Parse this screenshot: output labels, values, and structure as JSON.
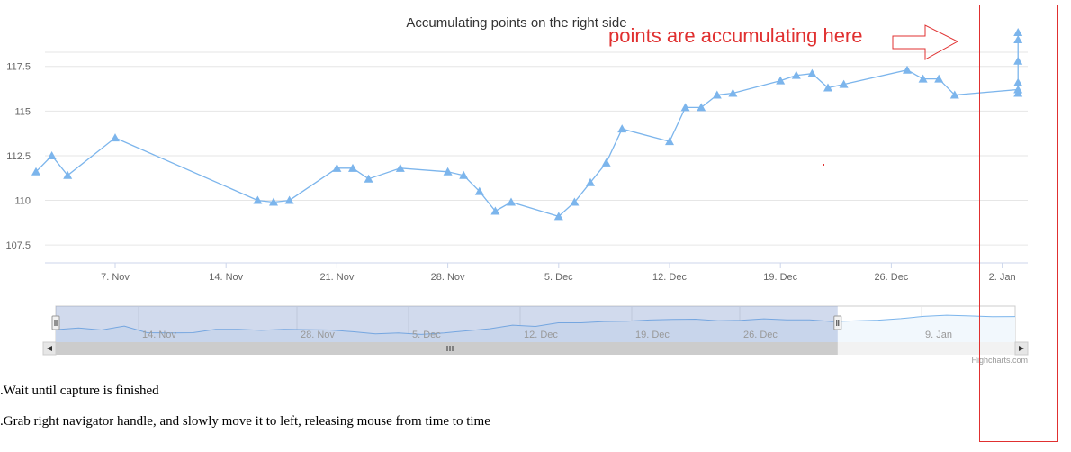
{
  "chart_data": {
    "type": "line",
    "title": "Accumulating points on the right side",
    "xlabel": "",
    "ylabel": "",
    "ylim": [
      106.5,
      119.2
    ],
    "yticks": [
      107.5,
      110,
      112.5,
      115,
      117.5
    ],
    "ytick_labels": [
      "107.5",
      "110",
      "112.5",
      "115",
      "117.5"
    ],
    "xticks": [
      {
        "label": "7. Nov",
        "date": "2016-11-07"
      },
      {
        "label": "14. Nov",
        "date": "2016-11-14"
      },
      {
        "label": "21. Nov",
        "date": "2016-11-21"
      },
      {
        "label": "28. Nov",
        "date": "2016-11-28"
      },
      {
        "label": "5. Dec",
        "date": "2016-12-05"
      },
      {
        "label": "12. Dec",
        "date": "2016-12-12"
      },
      {
        "label": "19. Dec",
        "date": "2016-12-19"
      },
      {
        "label": "26. Dec",
        "date": "2016-12-26"
      },
      {
        "label": "2. Jan",
        "date": "2017-01-02"
      }
    ],
    "grid": true,
    "color": "#7cb5ec",
    "marker": "triangle",
    "series": [
      {
        "x": [
          "2016-11-02",
          "2016-11-03",
          "2016-11-04",
          "2016-11-07",
          "2016-11-16",
          "2016-11-17",
          "2016-11-18",
          "2016-11-21",
          "2016-11-22",
          "2016-11-23",
          "2016-11-25",
          "2016-11-28",
          "2016-11-29",
          "2016-11-30",
          "2016-12-01",
          "2016-12-02",
          "2016-12-05",
          "2016-12-06",
          "2016-12-07",
          "2016-12-08",
          "2016-12-09",
          "2016-12-12",
          "2016-12-13",
          "2016-12-14",
          "2016-12-15",
          "2016-12-16",
          "2016-12-19",
          "2016-12-20",
          "2016-12-21",
          "2016-12-22",
          "2016-12-23",
          "2016-12-27",
          "2016-12-28",
          "2016-12-29",
          "2016-12-30",
          "2017-01-03",
          "2017-01-03",
          "2017-01-03",
          "2017-01-03",
          "2017-01-03",
          "2017-01-03"
        ],
        "y": [
          111.6,
          112.5,
          111.4,
          113.5,
          110.0,
          109.9,
          110.0,
          111.8,
          111.8,
          111.2,
          111.8,
          111.6,
          111.4,
          110.5,
          109.4,
          109.9,
          109.1,
          109.9,
          111.0,
          112.1,
          114.0,
          113.3,
          115.2,
          115.2,
          115.9,
          116.0,
          116.7,
          117.0,
          117.1,
          116.3,
          116.5,
          117.3,
          116.8,
          116.8,
          115.9,
          116.2,
          116.0,
          116.6,
          117.8,
          119.0,
          119.4
        ]
      }
    ],
    "navigator": {
      "labels": [
        "14. Nov",
        "28. Nov",
        "5. Dec",
        "12. Dec",
        "19. Dec",
        "26. Dec",
        "9. Jan"
      ],
      "y": [
        111.6,
        112.5,
        111.4,
        113.5,
        110.0,
        109.9,
        110.0,
        111.8,
        111.8,
        111.2,
        111.8,
        111.6,
        111.4,
        110.5,
        109.4,
        109.9,
        109.1,
        109.9,
        111.0,
        112.1,
        114.0,
        113.3,
        115.2,
        115.2,
        115.9,
        116.0,
        116.7,
        117.0,
        117.1,
        116.3,
        116.5,
        117.3,
        116.8,
        116.8,
        115.9,
        116.2,
        116.6,
        117.4,
        118.6,
        119.2,
        118.8,
        118.4,
        118.5
      ],
      "selected_range": [
        0,
        0.815
      ]
    }
  },
  "credits": "Highcharts.com",
  "annotation": {
    "text": "points are accumulating here",
    "color": "#e03030"
  },
  "instructions": [
    ".Wait until capture is finished",
    ".Grab right navigator handle, and slowly move it to left, releasing mouse from time to time"
  ]
}
